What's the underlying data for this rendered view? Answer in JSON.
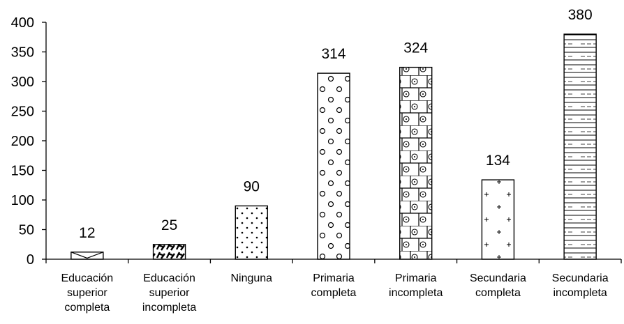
{
  "chart_data": {
    "type": "bar",
    "title": "",
    "xlabel": "",
    "ylabel": "",
    "ylim": [
      0,
      400
    ],
    "yticks": [
      0,
      50,
      100,
      150,
      200,
      250,
      300,
      350,
      400
    ],
    "grid": false,
    "categories": [
      [
        "Educación",
        "superior",
        "completa"
      ],
      [
        "Educación",
        "superior",
        "incompleta"
      ],
      [
        "Ninguna"
      ],
      [
        "Primaria",
        "completa"
      ],
      [
        "Primaria",
        "incompleta"
      ],
      [
        "Secundaria",
        "completa"
      ],
      [
        "Secundaria",
        "incompleta"
      ]
    ],
    "values": [
      12,
      25,
      90,
      314,
      324,
      134,
      380
    ],
    "patterns": [
      "envelope",
      "dashes",
      "dots",
      "circles",
      "bricks-circled-dots",
      "plus",
      "horizontal-lines"
    ]
  },
  "colors": {
    "axis": "#000000",
    "bar_fill": "#ffffff",
    "bar_stroke": "#000000"
  }
}
